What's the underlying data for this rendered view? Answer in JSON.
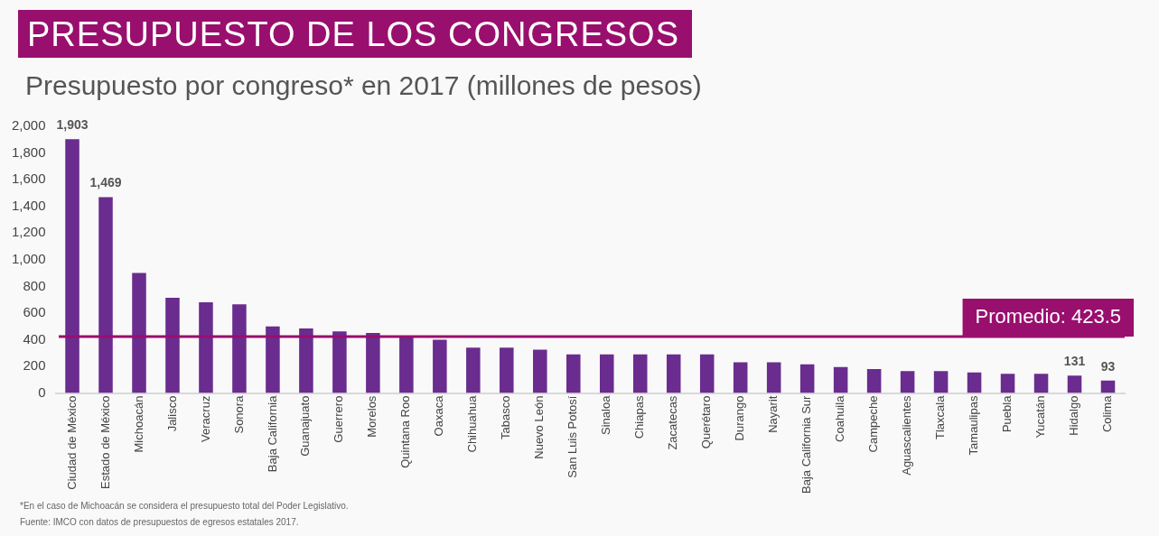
{
  "chart_data": {
    "type": "bar",
    "title": "PRESUPUESTO DE LOS CONGRESOS",
    "subtitle": "Presupuesto por congreso* en 2017 (millones de pesos)",
    "categories": [
      "Ciudad de México",
      "Estado de México",
      "Michoacán",
      "Jalisco",
      "Veracruz",
      "Sonora",
      "Baja California",
      "Guanajuato",
      "Guerrero",
      "Morelos",
      "Quintana Roo",
      "Oaxaca",
      "Chihuahua",
      "Tabasco",
      "Nuevo León",
      "San Luis Potosí",
      "Sinaloa",
      "Chiapas",
      "Zacatecas",
      "Querétaro",
      "Durango",
      "Nayarit",
      "Baja California Sur",
      "Coahuila",
      "Campeche",
      "Aguascalientes",
      "Tlaxcala",
      "Tamaulipas",
      "Puebla",
      "Yucatán",
      "Hidalgo",
      "Colima"
    ],
    "series": [
      {
        "color": "#6a2c8e",
        "values": [
          1903,
          1469,
          900,
          715,
          680,
          665,
          500,
          485,
          462,
          450,
          420,
          400,
          340,
          340,
          325,
          290,
          290,
          290,
          290,
          290,
          230,
          230,
          215,
          195,
          180,
          165,
          165,
          155,
          145,
          145,
          131,
          93
        ],
        "value_labels": [
          "1,903",
          "1,469",
          null,
          null,
          null,
          null,
          null,
          null,
          null,
          null,
          null,
          null,
          null,
          null,
          null,
          null,
          null,
          null,
          null,
          null,
          null,
          null,
          null,
          null,
          null,
          null,
          null,
          null,
          null,
          null,
          "131",
          "93"
        ]
      }
    ],
    "ylim": [
      0,
      2000
    ],
    "yticks": [
      {
        "value": 0,
        "label": "0"
      },
      {
        "value": 200,
        "label": "200"
      },
      {
        "value": 400,
        "label": "400"
      },
      {
        "value": 600,
        "label": "600"
      },
      {
        "value": 800,
        "label": "800"
      },
      {
        "value": 1000,
        "label": "1,000"
      },
      {
        "value": 1200,
        "label": "1,200"
      },
      {
        "value": 1400,
        "label": "1,400"
      },
      {
        "value": 1600,
        "label": "1,600"
      },
      {
        "value": 1800,
        "label": "1,800"
      },
      {
        "value": 2000,
        "label": "2,000"
      }
    ],
    "ref_lines": [
      {
        "axis": "y",
        "value": 423.5,
        "label": "Promedio: 423.5",
        "color": "#990f6e"
      }
    ],
    "grid": false,
    "legend": false,
    "annotations": [
      "*En el caso de Michoacán se considera el presupuesto total del Poder Legislativo.",
      "Fuente: IMCO con datos de presupuestos de egresos estatales 2017."
    ]
  }
}
